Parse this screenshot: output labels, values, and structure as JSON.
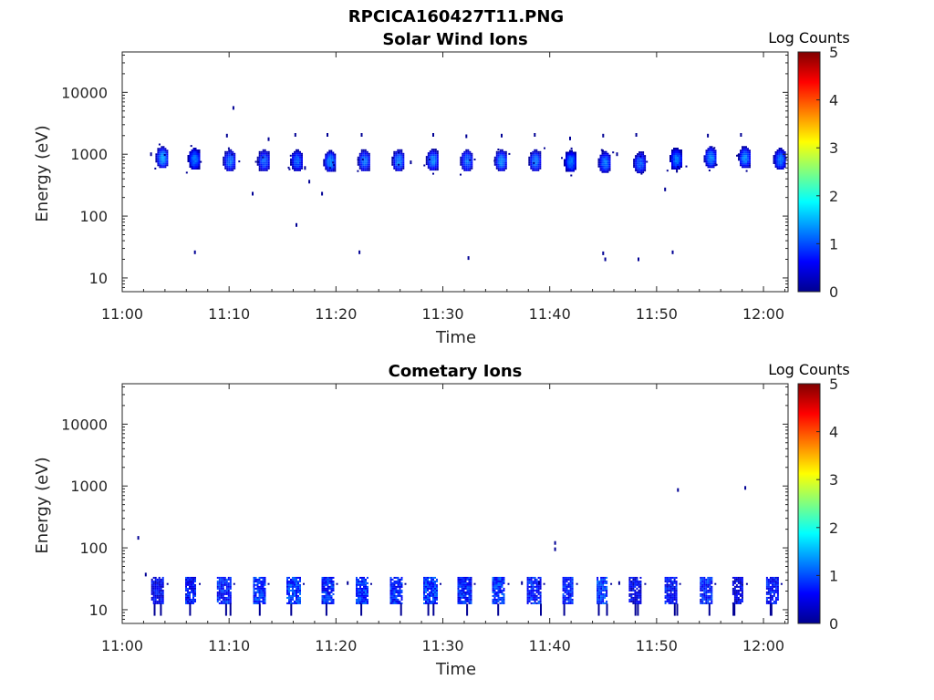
{
  "figure": {
    "title": "RPCICA160427T11.PNG"
  },
  "chart_data": [
    {
      "type": "heatmap",
      "title": "Solar Wind Ions",
      "xlabel": "Time",
      "ylabel": "Energy (eV)",
      "xticks": [
        "11:00",
        "11:10",
        "11:20",
        "11:30",
        "11:40",
        "11:50",
        "12:00"
      ],
      "yticks": [
        "10",
        "100",
        "1000",
        "10000"
      ],
      "yscale": "log",
      "ylim": [
        6,
        45000
      ],
      "xlim_minutes": [
        0,
        62.3
      ],
      "colorbar": {
        "label": "Log Counts",
        "ticks": [
          "0",
          "1",
          "2",
          "3",
          "4",
          "5"
        ],
        "range": [
          0,
          5
        ]
      },
      "blobs": [
        {
          "t": 3.7,
          "e": 900,
          "v": 1.4
        },
        {
          "t": 6.7,
          "e": 850,
          "v": 1.2
        },
        {
          "t": 10.0,
          "e": 800,
          "v": 1.2
        },
        {
          "t": 13.2,
          "e": 800,
          "v": 1.1
        },
        {
          "t": 16.3,
          "e": 800,
          "v": 1.1
        },
        {
          "t": 19.4,
          "e": 780,
          "v": 1.3
        },
        {
          "t": 22.6,
          "e": 800,
          "v": 1.2
        },
        {
          "t": 25.8,
          "e": 800,
          "v": 1.3
        },
        {
          "t": 29.0,
          "e": 820,
          "v": 1.3
        },
        {
          "t": 32.2,
          "e": 800,
          "v": 1.2
        },
        {
          "t": 35.4,
          "e": 800,
          "v": 1.3
        },
        {
          "t": 38.6,
          "e": 800,
          "v": 1.2
        },
        {
          "t": 41.9,
          "e": 780,
          "v": 1.2
        },
        {
          "t": 45.1,
          "e": 750,
          "v": 1.2
        },
        {
          "t": 48.4,
          "e": 740,
          "v": 1.1
        },
        {
          "t": 51.8,
          "e": 850,
          "v": 1.2
        },
        {
          "t": 55.0,
          "e": 900,
          "v": 1.3
        },
        {
          "t": 58.2,
          "e": 900,
          "v": 1.3
        },
        {
          "t": 61.5,
          "e": 850,
          "v": 1.2
        }
      ],
      "dots": [
        {
          "t": 10.4,
          "e": 5600
        },
        {
          "t": 9.8,
          "e": 2000
        },
        {
          "t": 13.7,
          "e": 1750
        },
        {
          "t": 16.2,
          "e": 2050
        },
        {
          "t": 19.2,
          "e": 2050
        },
        {
          "t": 22.4,
          "e": 2050
        },
        {
          "t": 29.1,
          "e": 2050
        },
        {
          "t": 32.2,
          "e": 1950
        },
        {
          "t": 35.5,
          "e": 2000
        },
        {
          "t": 38.6,
          "e": 2050
        },
        {
          "t": 41.9,
          "e": 1800
        },
        {
          "t": 45.0,
          "e": 2000
        },
        {
          "t": 48.1,
          "e": 2050
        },
        {
          "t": 54.8,
          "e": 2000
        },
        {
          "t": 57.9,
          "e": 2050
        },
        {
          "t": 12.2,
          "e": 230
        },
        {
          "t": 17.5,
          "e": 360
        },
        {
          "t": 18.7,
          "e": 230
        },
        {
          "t": 16.3,
          "e": 72
        },
        {
          "t": 50.8,
          "e": 270
        },
        {
          "t": 27.0,
          "e": 740
        },
        {
          "t": 6.8,
          "e": 26
        },
        {
          "t": 22.2,
          "e": 26
        },
        {
          "t": 32.4,
          "e": 21
        },
        {
          "t": 45.0,
          "e": 25
        },
        {
          "t": 45.2,
          "e": 20
        },
        {
          "t": 48.3,
          "e": 20
        },
        {
          "t": 51.5,
          "e": 26
        },
        {
          "t": 51.9,
          "e": 540
        },
        {
          "t": 46.3,
          "e": 1000
        },
        {
          "t": 17.1,
          "e": 600
        },
        {
          "t": 2.7,
          "e": 1000
        }
      ]
    },
    {
      "type": "heatmap",
      "title": "Cometary Ions",
      "xlabel": "Time",
      "ylabel": "Energy (eV)",
      "xticks": [
        "11:00",
        "11:10",
        "11:20",
        "11:30",
        "11:40",
        "11:50",
        "12:00"
      ],
      "yticks": [
        "10",
        "100",
        "1000",
        "10000"
      ],
      "yscale": "log",
      "ylim": [
        6,
        45000
      ],
      "xlim_minutes": [
        0,
        62.3
      ],
      "colorbar": {
        "label": "Log Counts",
        "ticks": [
          "0",
          "1",
          "2",
          "3",
          "4",
          "5"
        ],
        "range": [
          0,
          5
        ]
      },
      "columns": [
        {
          "t": 3.3,
          "v": 0.6
        },
        {
          "t": 6.4,
          "v": 0.7
        },
        {
          "t": 9.5,
          "v": 0.8
        },
        {
          "t": 12.8,
          "v": 0.9
        },
        {
          "t": 16.0,
          "v": 0.9
        },
        {
          "t": 19.2,
          "v": 0.8
        },
        {
          "t": 22.4,
          "v": 0.9
        },
        {
          "t": 25.6,
          "v": 0.8
        },
        {
          "t": 28.8,
          "v": 0.9
        },
        {
          "t": 32.0,
          "v": 0.8
        },
        {
          "t": 35.2,
          "v": 0.9
        },
        {
          "t": 38.5,
          "v": 0.8
        },
        {
          "t": 41.7,
          "v": 0.8
        },
        {
          "t": 44.9,
          "v": 0.9
        },
        {
          "t": 48.0,
          "v": 0.6
        },
        {
          "t": 51.3,
          "v": 0.7
        },
        {
          "t": 54.6,
          "v": 0.8
        },
        {
          "t": 57.6,
          "v": 0.5
        },
        {
          "t": 60.8,
          "v": 0.7
        }
      ],
      "dots": [
        {
          "t": 1.5,
          "e": 145
        },
        {
          "t": 2.2,
          "e": 37
        },
        {
          "t": 40.5,
          "e": 95
        },
        {
          "t": 40.5,
          "e": 120
        },
        {
          "t": 52.0,
          "e": 860
        },
        {
          "t": 58.3,
          "e": 930
        },
        {
          "t": 21.1,
          "e": 27
        },
        {
          "t": 37.4,
          "e": 27
        },
        {
          "t": 39.0,
          "e": 27
        },
        {
          "t": 46.5,
          "e": 27
        }
      ]
    }
  ]
}
